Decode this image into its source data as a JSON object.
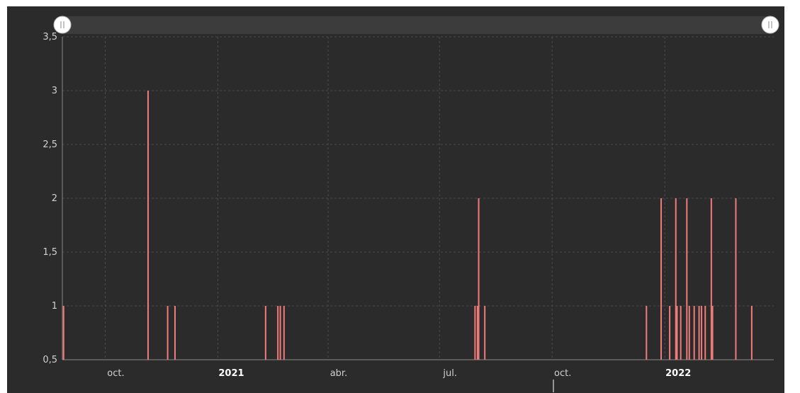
{
  "chart_data": {
    "type": "bar",
    "title": "",
    "xlabel": "",
    "ylabel": "",
    "ylim": [
      0.5,
      3.5
    ],
    "grid": true,
    "y_ticks": [
      "0,5",
      "1",
      "1,5",
      "2",
      "2,5",
      "3",
      "3,5"
    ],
    "x_range": [
      "2020-08-27",
      "2022-03-31"
    ],
    "x_ticks": [
      {
        "label": "oct.",
        "date": "2020-10-01",
        "bold": false
      },
      {
        "label": "2021",
        "date": "2021-01-01",
        "bold": true
      },
      {
        "label": "abr.",
        "date": "2021-04-01",
        "bold": false
      },
      {
        "label": "jul.",
        "date": "2021-07-01",
        "bold": false
      },
      {
        "label": "oct.",
        "date": "2021-10-01",
        "bold": false
      },
      {
        "label": "2022",
        "date": "2022-01-01",
        "bold": true
      }
    ],
    "series": [
      {
        "values": [
          {
            "x": "2020-08-28",
            "y": 1
          },
          {
            "x": "2020-11-05",
            "y": 3
          },
          {
            "x": "2020-11-21",
            "y": 1
          },
          {
            "x": "2020-11-27",
            "y": 1
          },
          {
            "x": "2021-02-09",
            "y": 1
          },
          {
            "x": "2021-02-19",
            "y": 1
          },
          {
            "x": "2021-02-21",
            "y": 1
          },
          {
            "x": "2021-02-24",
            "y": 1
          },
          {
            "x": "2021-07-30",
            "y": 1
          },
          {
            "x": "2021-08-01",
            "y": 1
          },
          {
            "x": "2021-08-02",
            "y": 2
          },
          {
            "x": "2021-08-07",
            "y": 1
          },
          {
            "x": "2021-12-17",
            "y": 1
          },
          {
            "x": "2021-12-29",
            "y": 2
          },
          {
            "x": "2022-01-05",
            "y": 1
          },
          {
            "x": "2022-01-10",
            "y": 2
          },
          {
            "x": "2022-01-11",
            "y": 1
          },
          {
            "x": "2022-01-14",
            "y": 1
          },
          {
            "x": "2022-01-19",
            "y": 2
          },
          {
            "x": "2022-01-21",
            "y": 1
          },
          {
            "x": "2022-01-25",
            "y": 1
          },
          {
            "x": "2022-01-29",
            "y": 1
          },
          {
            "x": "2022-01-31",
            "y": 1
          },
          {
            "x": "2022-02-03",
            "y": 1
          },
          {
            "x": "2022-02-08",
            "y": 2
          },
          {
            "x": "2022-02-09",
            "y": 1
          },
          {
            "x": "2022-02-28",
            "y": 2
          },
          {
            "x": "2022-03-13",
            "y": 1
          }
        ]
      }
    ],
    "colors": {
      "bar": "#f07b7b",
      "background": "#2b2b2b",
      "grid": "#4a4a4a",
      "axis": "#8a8a8a",
      "scrollbar": "#3c3c3c",
      "handle": "#ffffff"
    },
    "scrollbar": {
      "handle_left_icon": "scroll-handle-icon",
      "handle_right_icon": "scroll-handle-icon"
    }
  }
}
